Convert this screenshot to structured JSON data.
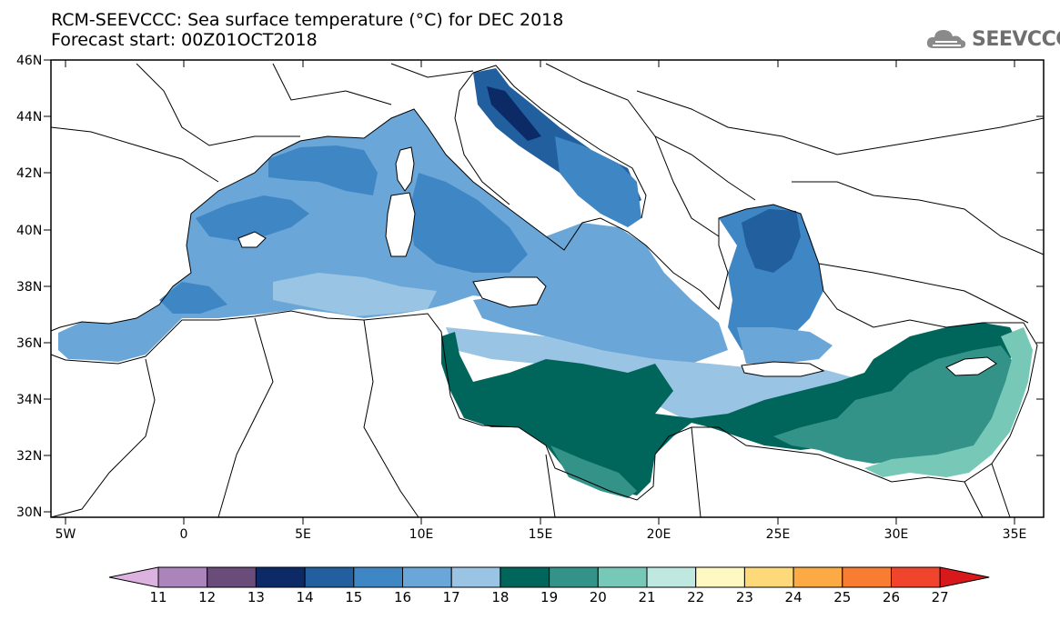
{
  "header": {
    "title_line1": "RCM-SEEVCCC: Sea surface temperature (°C) for DEC 2018",
    "title_line2": "Forecast start: 00Z01OCT2018",
    "logo_text": "SEEVCCC"
  },
  "map": {
    "lon_range": [
      -5.5,
      36.5
    ],
    "lat_range": [
      29.8,
      46.0
    ],
    "lon_ticks": [
      "5W",
      "0",
      "5E",
      "10E",
      "15E",
      "20E",
      "25E",
      "30E",
      "35E"
    ],
    "lat_ticks": [
      "30N",
      "32N",
      "34N",
      "36N",
      "38N",
      "40N",
      "42N",
      "44N",
      "46N"
    ],
    "variable": "Sea surface temperature (°C)",
    "land_color": "#ffffff",
    "border_color": "#000000"
  },
  "colorbar": {
    "labels": [
      "11",
      "12",
      "13",
      "14",
      "15",
      "16",
      "17",
      "18",
      "19",
      "20",
      "21",
      "22",
      "23",
      "24",
      "25",
      "26",
      "27"
    ],
    "colors": [
      "#dcb2e0",
      "#ac84bc",
      "#6a4c7a",
      "#0b2a66",
      "#215f9e",
      "#3f87c4",
      "#6aa7d8",
      "#9ac4e3",
      "#00655a",
      "#339388",
      "#78c8b8",
      "#bfe8e0",
      "#fef9c0",
      "#fed97a",
      "#fcab44",
      "#f87c31",
      "#f0452c",
      "#d7191c"
    ]
  }
}
